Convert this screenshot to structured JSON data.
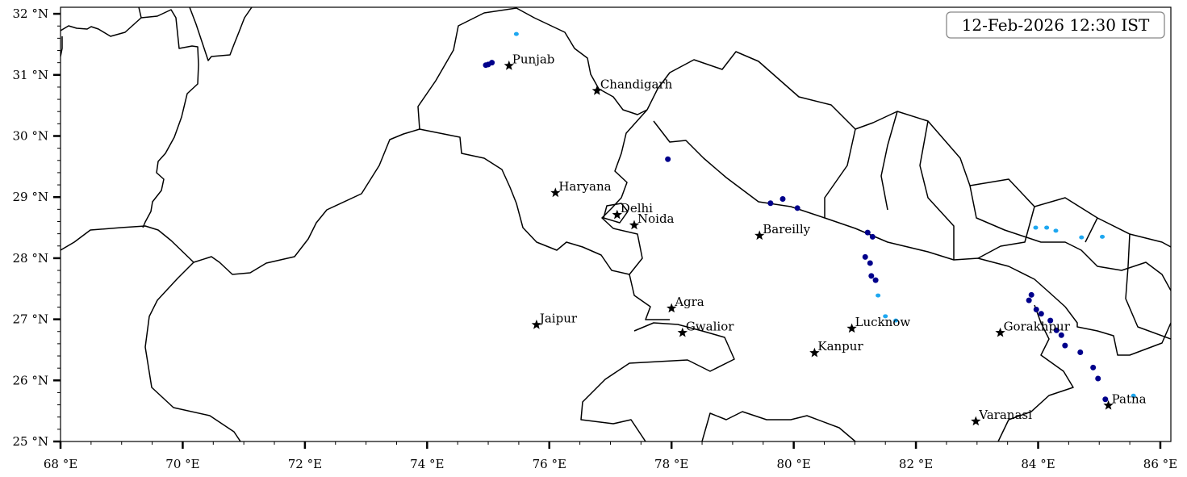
{
  "map": {
    "timestamp": "12-Feb-2026 12:30 IST",
    "extent": {
      "lon": [
        68,
        86.17
      ],
      "lat": [
        25,
        32.1
      ]
    },
    "x_ticks": [
      {
        "value": 68,
        "label": "68 °E"
      },
      {
        "value": 70,
        "label": "70 °E"
      },
      {
        "value": 72,
        "label": "72 °E"
      },
      {
        "value": 74,
        "label": "74 °E"
      },
      {
        "value": 76,
        "label": "76 °E"
      },
      {
        "value": 78,
        "label": "78 °E"
      },
      {
        "value": 80,
        "label": "80 °E"
      },
      {
        "value": 82,
        "label": "82 °E"
      },
      {
        "value": 84,
        "label": "84 °E"
      },
      {
        "value": 86,
        "label": "86 °E"
      }
    ],
    "y_ticks": [
      {
        "value": 25,
        "label": "25 °N"
      },
      {
        "value": 26,
        "label": "26 °N"
      },
      {
        "value": 27,
        "label": "27 °N"
      },
      {
        "value": 28,
        "label": "28 °N"
      },
      {
        "value": 29,
        "label": "29 °N"
      },
      {
        "value": 30,
        "label": "30 °N"
      },
      {
        "value": 31,
        "label": "31 °N"
      },
      {
        "value": 32,
        "label": "32 °N"
      }
    ],
    "x_minor_step": 0.5,
    "y_minor_step": 0.2,
    "cities": [
      {
        "name": "Punjab",
        "lon": 75.34,
        "lat": 31.15
      },
      {
        "name": "Chandigarh",
        "lon": 76.78,
        "lat": 30.74
      },
      {
        "name": "Haryana",
        "lon": 76.1,
        "lat": 29.07
      },
      {
        "name": "Delhi",
        "lon": 77.11,
        "lat": 28.71
      },
      {
        "name": "Noida",
        "lon": 77.39,
        "lat": 28.54
      },
      {
        "name": "Bareilly",
        "lon": 79.44,
        "lat": 28.37
      },
      {
        "name": "Agra",
        "lon": 78.0,
        "lat": 27.18
      },
      {
        "name": "Jaipur",
        "lon": 75.79,
        "lat": 26.91
      },
      {
        "name": "Gwalior",
        "lon": 78.18,
        "lat": 26.78
      },
      {
        "name": "Lucknow",
        "lon": 80.95,
        "lat": 26.85
      },
      {
        "name": "Kanpur",
        "lon": 80.34,
        "lat": 26.45
      },
      {
        "name": "Gorakhpur",
        "lon": 83.38,
        "lat": 26.78
      },
      {
        "name": "Varanasi",
        "lon": 82.98,
        "lat": 25.33
      },
      {
        "name": "Patna",
        "lon": 85.15,
        "lat": 25.59
      }
    ],
    "colors": {
      "precip_heavy": "#00008b",
      "precip_light": "#1ea7f0",
      "border": "#000000",
      "marker": "#000000"
    },
    "precip_cells": [
      {
        "lon": 75.0,
        "lat": 31.17,
        "level": "heavy"
      },
      {
        "lon": 75.06,
        "lat": 31.2,
        "level": "heavy"
      },
      {
        "lon": 74.96,
        "lat": 31.16,
        "level": "heavy"
      },
      {
        "lon": 75.46,
        "lat": 31.67,
        "level": "light"
      },
      {
        "lon": 77.94,
        "lat": 29.62,
        "level": "heavy"
      },
      {
        "lon": 79.62,
        "lat": 28.9,
        "level": "heavy"
      },
      {
        "lon": 79.82,
        "lat": 28.97,
        "level": "heavy"
      },
      {
        "lon": 80.06,
        "lat": 28.82,
        "level": "heavy"
      },
      {
        "lon": 81.21,
        "lat": 28.42,
        "level": "heavy"
      },
      {
        "lon": 81.29,
        "lat": 28.35,
        "level": "heavy"
      },
      {
        "lon": 81.17,
        "lat": 28.02,
        "level": "heavy"
      },
      {
        "lon": 81.25,
        "lat": 27.92,
        "level": "heavy"
      },
      {
        "lon": 81.27,
        "lat": 27.71,
        "level": "heavy"
      },
      {
        "lon": 81.34,
        "lat": 27.64,
        "level": "heavy"
      },
      {
        "lon": 81.38,
        "lat": 27.39,
        "level": "light"
      },
      {
        "lon": 81.5,
        "lat": 27.05,
        "level": "light"
      },
      {
        "lon": 81.67,
        "lat": 26.98,
        "level": "light"
      },
      {
        "lon": 83.85,
        "lat": 27.31,
        "level": "heavy"
      },
      {
        "lon": 83.89,
        "lat": 27.4,
        "level": "heavy"
      },
      {
        "lon": 83.97,
        "lat": 27.16,
        "level": "heavy"
      },
      {
        "lon": 84.05,
        "lat": 27.09,
        "level": "heavy"
      },
      {
        "lon": 84.2,
        "lat": 26.98,
        "level": "heavy"
      },
      {
        "lon": 84.3,
        "lat": 26.82,
        "level": "heavy"
      },
      {
        "lon": 84.38,
        "lat": 26.74,
        "level": "heavy"
      },
      {
        "lon": 84.44,
        "lat": 26.57,
        "level": "heavy"
      },
      {
        "lon": 84.69,
        "lat": 26.46,
        "level": "heavy"
      },
      {
        "lon": 84.9,
        "lat": 26.21,
        "level": "heavy"
      },
      {
        "lon": 84.98,
        "lat": 26.03,
        "level": "heavy"
      },
      {
        "lon": 85.1,
        "lat": 25.69,
        "level": "heavy"
      },
      {
        "lon": 83.96,
        "lat": 28.5,
        "level": "light"
      },
      {
        "lon": 84.14,
        "lat": 28.5,
        "level": "light"
      },
      {
        "lon": 84.29,
        "lat": 28.45,
        "level": "light"
      },
      {
        "lon": 84.71,
        "lat": 28.34,
        "level": "light"
      },
      {
        "lon": 85.05,
        "lat": 28.35,
        "level": "light"
      },
      {
        "lon": 85.56,
        "lat": 25.75,
        "level": "light"
      }
    ]
  }
}
